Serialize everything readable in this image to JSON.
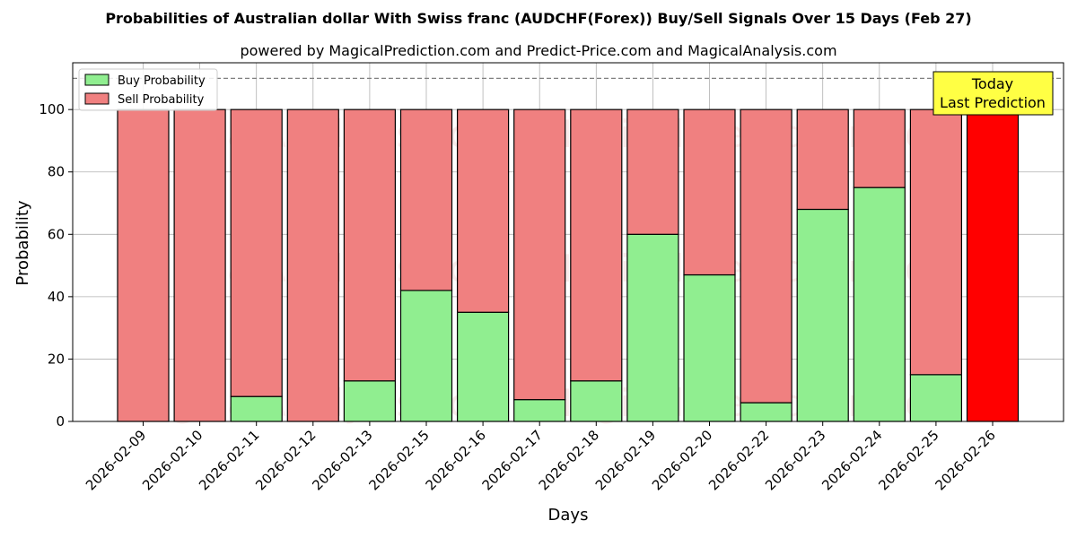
{
  "chart_data": {
    "type": "bar",
    "stacked": true,
    "title": "Probabilities of Australian dollar With Swiss franc (AUDCHF(Forex)) Buy/Sell Signals Over 15 Days (Feb 27)",
    "subtitle": "powered by MagicalPrediction.com and Predict-Price.com and MagicalAnalysis.com",
    "xlabel": "Days",
    "ylabel": "Probability",
    "ylim": [
      0,
      115
    ],
    "yticks": [
      0,
      20,
      40,
      60,
      80,
      100
    ],
    "grid": true,
    "legend_position": "top-left",
    "reference_line": 110,
    "categories": [
      "2026-02-09",
      "2026-02-10",
      "2026-02-11",
      "2026-02-12",
      "2026-02-13",
      "2026-02-15",
      "2026-02-16",
      "2026-02-17",
      "2026-02-18",
      "2026-02-19",
      "2026-02-20",
      "2026-02-22",
      "2026-02-23",
      "2026-02-24",
      "2026-02-25",
      "2026-02-26"
    ],
    "series": [
      {
        "name": "Buy Probability",
        "color": "#90ee90",
        "values": [
          0,
          0,
          8,
          0,
          13,
          42,
          35,
          7,
          13,
          60,
          47,
          6,
          68,
          75,
          15,
          0
        ]
      },
      {
        "name": "Sell Probability",
        "color": "#f08080",
        "values": [
          100,
          100,
          92,
          100,
          87,
          58,
          65,
          93,
          87,
          40,
          53,
          94,
          32,
          25,
          85,
          100
        ]
      }
    ],
    "highlight": {
      "category": "2026-02-26",
      "color": "#ff0000"
    },
    "annotation": {
      "lines": [
        "Today",
        "Last Prediction"
      ],
      "background": "#ffff44"
    },
    "watermarks": [
      "MagicalAnalysis.com",
      "MagicalPrediction.com"
    ]
  }
}
